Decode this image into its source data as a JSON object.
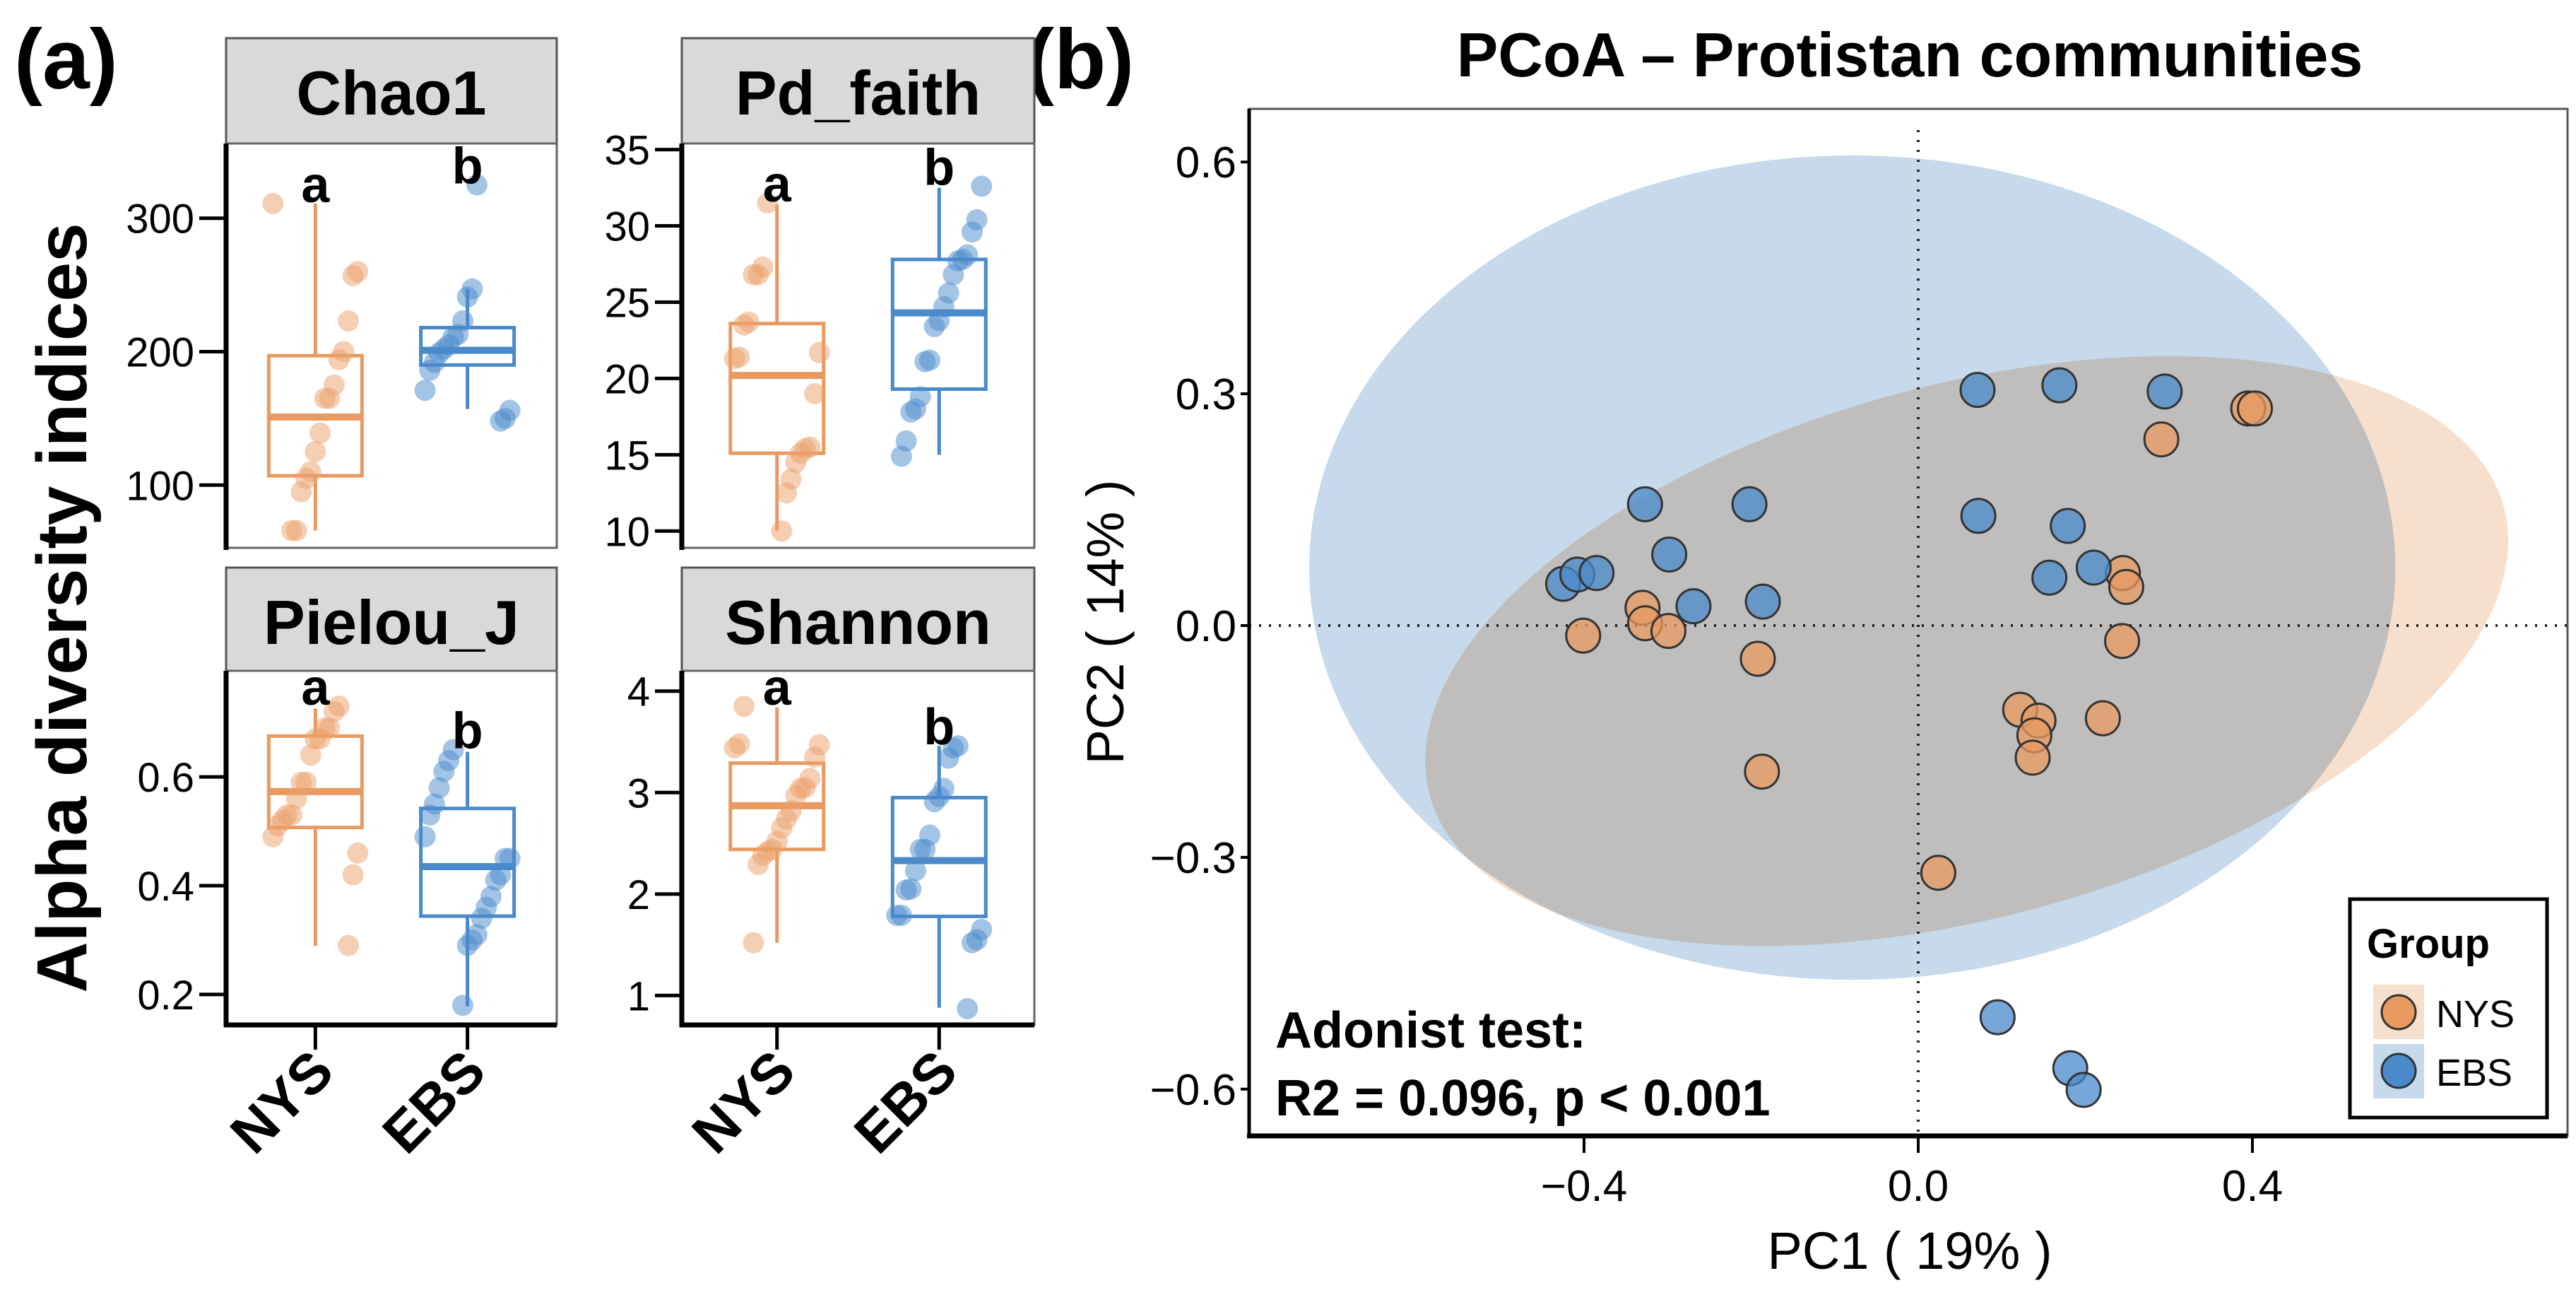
{
  "panel_a": {
    "label": "(a)",
    "ylabel": "Alpha diversity indices",
    "groups": [
      "NYS",
      "EBS"
    ]
  },
  "panel_b": {
    "label": "(b)"
  },
  "chart_data": [
    {
      "type": "box",
      "title": "Chao1",
      "ylim": [
        53,
        356
      ],
      "yticks": [
        100,
        200,
        300
      ],
      "categories": [
        "NYS",
        "EBS"
      ],
      "letters": [
        "a",
        "b"
      ],
      "boxes": [
        {
          "min": 66,
          "q1": 107,
          "median": 151,
          "q3": 197,
          "max": 311
        },
        {
          "min": 157,
          "q1": 190,
          "median": 201,
          "q3": 218,
          "max": 247
        }
      ],
      "points": [
        [
          311,
          260,
          257,
          223,
          200,
          194,
          175,
          165,
          165,
          139,
          125,
          110,
          105,
          95,
          66,
          66
        ],
        [
          325,
          247,
          241,
          223,
          213,
          211,
          205,
          202,
          199,
          192,
          186,
          171,
          156,
          150,
          148
        ]
      ]
    },
    {
      "type": "box",
      "title": "Pd_faith",
      "ylim": [
        8.9,
        35.4
      ],
      "yticks": [
        10,
        15,
        20,
        25,
        30,
        35
      ],
      "categories": [
        "NYS",
        "EBS"
      ],
      "letters": [
        "a",
        "b"
      ],
      "boxes": [
        {
          "min": 10.0,
          "q1": 15.1,
          "median": 20.2,
          "q3": 23.6,
          "max": 31.4
        },
        {
          "min": 15.0,
          "q1": 19.3,
          "median": 24.3,
          "q3": 27.8,
          "max": 32.5
        }
      ],
      "points": [
        [
          31.5,
          27.3,
          26.8,
          26.8,
          23.7,
          23.5,
          21.4,
          21.3,
          21.7,
          19.0,
          15.5,
          15.4,
          15.1,
          14.5,
          13.4,
          12.5,
          10.0
        ],
        [
          32.6,
          30.4,
          29.6,
          28.1,
          27.8,
          27.7,
          26.8,
          25.6,
          24.7,
          23.8,
          23.4,
          21.2,
          21.1,
          18.8,
          18.0,
          17.8,
          15.9,
          14.9
        ]
      ]
    },
    {
      "type": "box",
      "title": "Pielou_J",
      "ylim": [
        0.144,
        0.795
      ],
      "yticks": [
        0.2,
        0.4,
        0.6
      ],
      "categories": [
        "NYS",
        "EBS"
      ],
      "letters": [
        "a",
        "b"
      ],
      "boxes": [
        {
          "min": 0.289,
          "q1": 0.507,
          "median": 0.573,
          "q3": 0.675,
          "max": 0.726
        },
        {
          "min": 0.178,
          "q1": 0.344,
          "median": 0.435,
          "q3": 0.542,
          "max": 0.646
        }
      ],
      "points": [
        [
          0.73,
          0.72,
          0.69,
          0.69,
          0.67,
          0.67,
          0.64,
          0.59,
          0.59,
          0.56,
          0.53,
          0.53,
          0.52,
          0.51,
          0.49,
          0.46,
          0.42,
          0.29
        ],
        [
          0.65,
          0.63,
          0.61,
          0.58,
          0.55,
          0.53,
          0.49,
          0.45,
          0.45,
          0.42,
          0.41,
          0.38,
          0.36,
          0.34,
          0.31,
          0.3,
          0.29,
          0.18
        ]
      ]
    },
    {
      "type": "box",
      "title": "Shannon",
      "ylim": [
        0.71,
        4.2
      ],
      "yticks": [
        1,
        2,
        3,
        4
      ],
      "categories": [
        "NYS",
        "EBS"
      ],
      "letters": [
        "a",
        "b"
      ],
      "boxes": [
        {
          "min": 1.52,
          "q1": 2.44,
          "median": 2.87,
          "q3": 3.29,
          "max": 3.84
        },
        {
          "min": 0.88,
          "q1": 1.78,
          "median": 2.33,
          "q3": 2.95,
          "max": 3.46
        }
      ],
      "points": [
        [
          3.85,
          3.48,
          3.44,
          3.47,
          3.35,
          3.14,
          3.05,
          3.04,
          2.97,
          2.82,
          2.74,
          2.65,
          2.52,
          2.44,
          2.42,
          2.38,
          2.29,
          1.52
        ],
        [
          3.46,
          3.44,
          3.34,
          3.04,
          2.96,
          2.91,
          2.58,
          2.44,
          2.44,
          2.23,
          2.05,
          2.04,
          1.79,
          1.79,
          1.65,
          1.55,
          1.52,
          0.87
        ]
      ]
    },
    {
      "type": "scatter",
      "title": "PCoA – Protistan communities",
      "xlabel": "PC1 ( 19% )",
      "ylabel": "PC2 ( 14% )",
      "xlim": [
        -0.8,
        0.78
      ],
      "ylim": [
        -0.66,
        0.67
      ],
      "xticks": [
        -0.4,
        0.0,
        0.4
      ],
      "xtick_labels": [
        "−0.4",
        "0.0",
        "0.4"
      ],
      "yticks": [
        -0.6,
        -0.3,
        0.0,
        0.3,
        0.6
      ],
      "ytick_labels": [
        "−0.6",
        "−0.3",
        "0.0",
        "0.3",
        "0.6"
      ],
      "reference_lines": {
        "x": 0,
        "y": 0,
        "style": "dotted"
      },
      "legend": {
        "title": "Group",
        "position": "bottom-right"
      },
      "annotation": [
        "Adonist test:",
        "R2 = 0.096, p < 0.001"
      ],
      "series": [
        {
          "name": "NYS",
          "color": "#E89A60",
          "ellipse_fill": "#F6DFCC",
          "ellipse": {
            "center": [
              0.058,
              -0.033
            ],
            "x_extent": [
              -0.59,
              0.707
            ],
            "y_extent": [
              -0.415,
              0.348
            ]
          },
          "points": [
            [
              0.395,
              0.281
            ],
            [
              0.403,
              0.281
            ],
            [
              0.291,
              0.241
            ],
            [
              0.245,
              0.068
            ],
            [
              0.249,
              0.05
            ],
            [
              -0.33,
              0.023
            ],
            [
              -0.327,
              0.003
            ],
            [
              -0.299,
              -0.007
            ],
            [
              -0.401,
              -0.013
            ],
            [
              -0.192,
              -0.043
            ],
            [
              0.244,
              -0.02
            ],
            [
              0.122,
              -0.109
            ],
            [
              0.144,
              -0.123
            ],
            [
              0.139,
              -0.142
            ],
            [
              0.137,
              -0.171
            ],
            [
              0.221,
              -0.12
            ],
            [
              -0.187,
              -0.189
            ],
            [
              0.024,
              -0.32
            ]
          ]
        },
        {
          "name": "EBS",
          "color": "#4A8ACB",
          "ellipse_fill": "#C6DAEC",
          "ellipse": {
            "center": [
              -0.079,
              0.075
            ],
            "x_extent": [
              -0.729,
              0.571
            ],
            "y_extent": [
              -0.458,
              0.609
            ]
          },
          "points": [
            [
              0.071,
              0.305
            ],
            [
              0.169,
              0.311
            ],
            [
              0.295,
              0.303
            ],
            [
              -0.327,
              0.157
            ],
            [
              -0.202,
              0.157
            ],
            [
              0.072,
              0.142
            ],
            [
              0.179,
              0.129
            ],
            [
              -0.298,
              0.092
            ],
            [
              -0.425,
              0.054
            ],
            [
              -0.408,
              0.066
            ],
            [
              -0.385,
              0.068
            ],
            [
              -0.269,
              0.025
            ],
            [
              -0.186,
              0.031
            ],
            [
              0.157,
              0.062
            ],
            [
              0.21,
              0.075
            ],
            [
              0.095,
              -0.507
            ],
            [
              0.182,
              -0.573
            ],
            [
              0.198,
              -0.601
            ]
          ]
        }
      ]
    }
  ]
}
